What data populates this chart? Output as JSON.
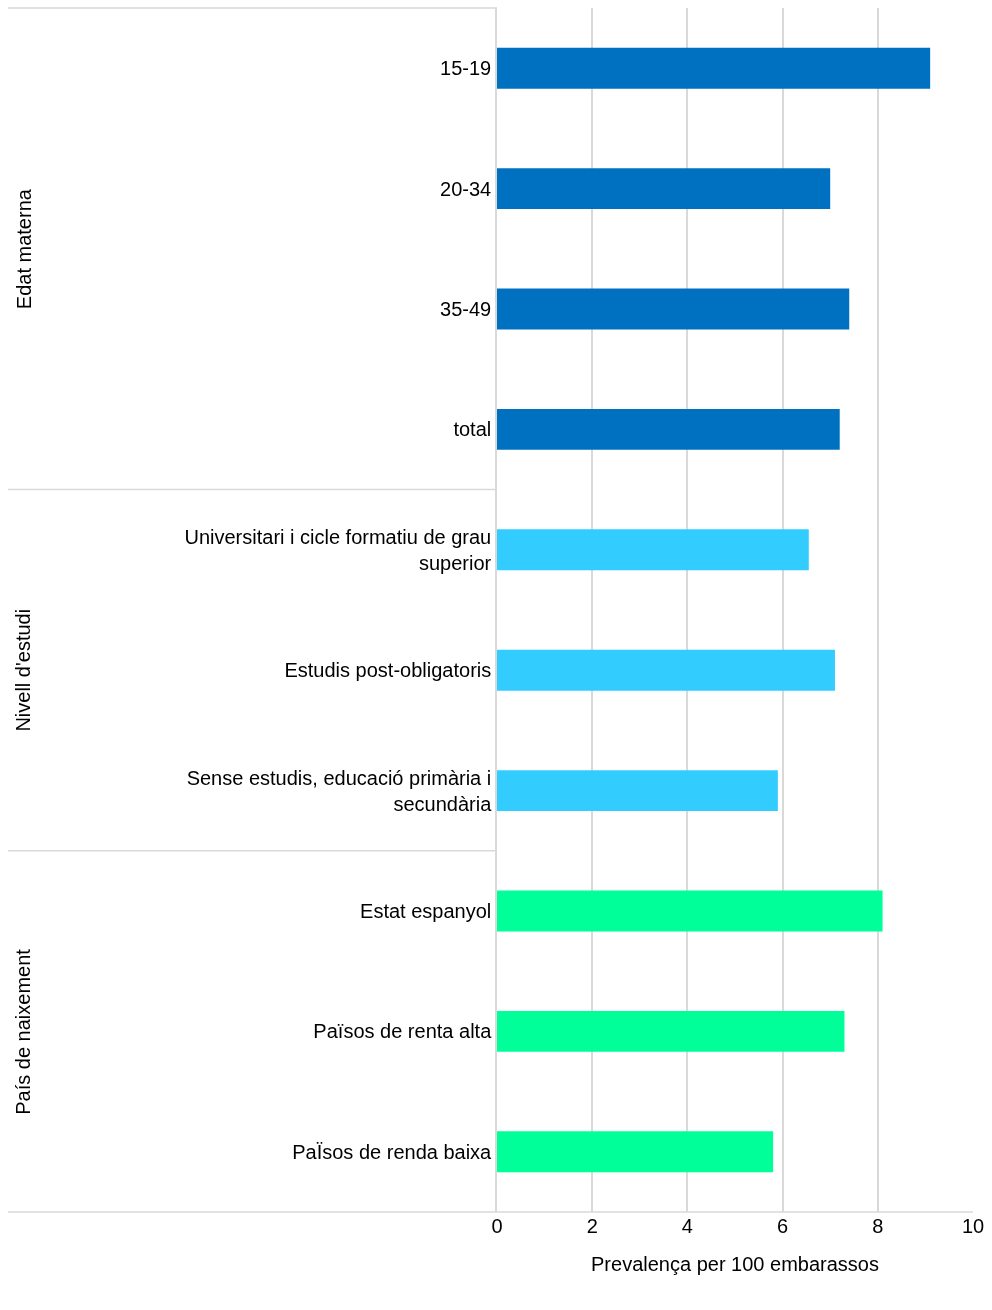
{
  "chart_data": {
    "type": "bar",
    "orientation": "horizontal",
    "categories": [
      "15-19",
      "20-34",
      "35-49",
      "total",
      "Universitari i cicle formatiu de grau superior",
      "Estudis post-obligatoris",
      "Sense estudis, educació primària i secundària",
      "Estat espanyol",
      "Països de renta alta",
      "PaÏsos de renda baixa"
    ],
    "values": [
      9.1,
      7.0,
      7.4,
      7.2,
      6.55,
      7.1,
      5.9,
      8.1,
      7.3,
      5.8
    ],
    "colors": [
      "#0070c0",
      "#0070c0",
      "#0070c0",
      "#0070c0",
      "#33ccff",
      "#33ccff",
      "#33ccff",
      "#00ff99",
      "#00ff99",
      "#00ff99"
    ],
    "xlabel": "Prevalença per 100 embarassos",
    "xlim": [
      0,
      10
    ],
    "xticks": [
      0,
      2,
      4,
      6,
      8,
      10
    ],
    "grid": "x",
    "annotations": [
      "Edat materna",
      "Nivell d'estudi",
      "País de naixement"
    ]
  }
}
